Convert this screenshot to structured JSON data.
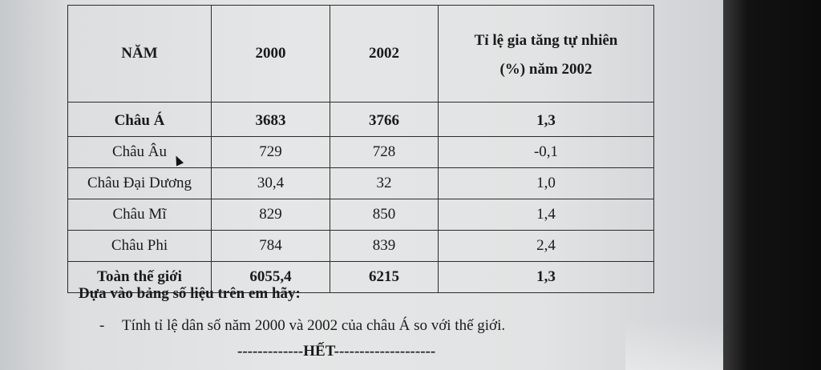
{
  "table": {
    "headers": [
      "NĂM",
      "2000",
      "2002",
      "Tỉ lệ gia tăng tự nhiên",
      "(%) năm 2002"
    ],
    "rows": [
      {
        "region": "Châu Á",
        "y2000": "3683",
        "y2002": "3766",
        "rate": "1,3",
        "bold": true
      },
      {
        "region": "Châu Âu",
        "y2000": "729",
        "y2002": "728",
        "rate": "-0,1",
        "bold": false
      },
      {
        "region": "Châu Đại Dương",
        "y2000": "30,4",
        "y2002": "32",
        "rate": "1,0",
        "bold": false
      },
      {
        "region": "Châu Mĩ",
        "y2000": "829",
        "y2002": "850",
        "rate": "1,4",
        "bold": false
      },
      {
        "region": "Châu Phi",
        "y2000": "784",
        "y2002": "839",
        "rate": "2,4",
        "bold": false
      },
      {
        "region": "Toàn thế giới",
        "y2000": "6055,4",
        "y2002": "6215",
        "rate": "1,3",
        "bold": true
      }
    ]
  },
  "instruction": "Dựa vào bảng số liệu trên em hãy:",
  "bullet_dash": "-",
  "task": "Tính tỉ lệ dân số năm 2000 và 2002 của châu Á so với thế giới.",
  "end_marker": "-------------HẾT--------------------",
  "colors": {
    "text": "#1a1a1a",
    "paper": "#e2e4e5",
    "bezel": "#0c0c0c"
  },
  "icons": {
    "cursor": "mouse-pointer-icon"
  }
}
